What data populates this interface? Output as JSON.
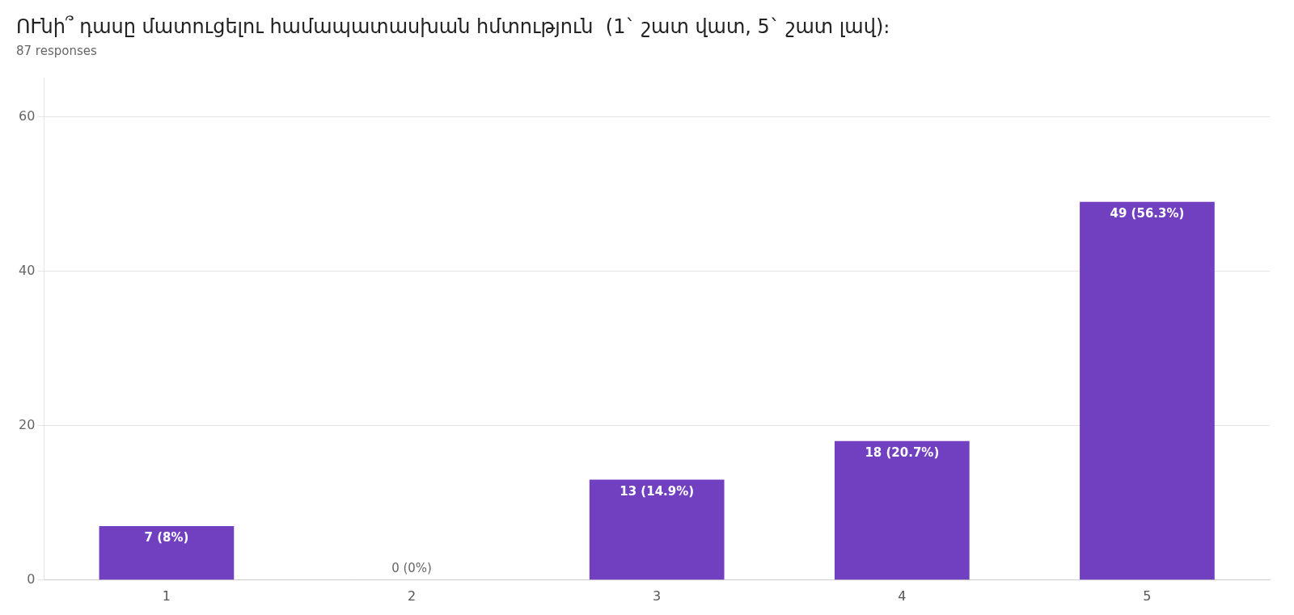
{
  "chart_data": {
    "type": "bar",
    "title": "ՈՒնի՞ դասը մատուցելու համապատասխան հմտություն  (1` շատ վատ, 5` շատ լավ)։      ",
    "subtitle": "87 responses",
    "categories": [
      1,
      2,
      3,
      4,
      5
    ],
    "values": [
      7,
      0,
      13,
      18,
      49
    ],
    "value_labels": [
      "7 (8%)",
      "0 (0%)",
      "13 (14.9%)",
      "18 (20.7%)",
      "49 (56.3%)"
    ],
    "data_labels": true,
    "color": "#7040C0",
    "ylim": [
      0,
      65
    ],
    "yticks": [
      0,
      20,
      40,
      60
    ],
    "grid": true
  }
}
